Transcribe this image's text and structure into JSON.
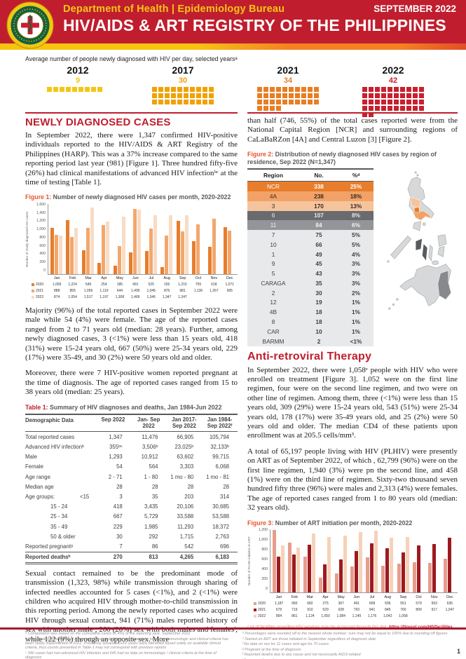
{
  "palette": {
    "red": "#C01E2E",
    "dark_red": "#A6192E",
    "fig_label_orange": "#E8542E",
    "stripe_yellow": "#F9C410",
    "stripe_orange": "#F58220"
  },
  "header": {
    "dept": "Department of Health | Epidemiology Bureau",
    "issue": "SEPTEMBER 2022",
    "title": "HIV/AIDS & ART REGISTRY OF THE PHILIPPINES"
  },
  "daily": {
    "caption": "Average number of people newly diagnosed with HIV per day, selected yearsᵃ",
    "groups": [
      {
        "year": "2012",
        "value": 9,
        "color": "#F3C613"
      },
      {
        "year": "2017",
        "value": 30,
        "color": "#F0A202"
      },
      {
        "year": "2021",
        "value": 34,
        "color": "#E87E23"
      },
      {
        "year": "2022",
        "value": 42,
        "color": "#C8202F"
      }
    ]
  },
  "newly": {
    "heading": "NEWLY DIAGNOSED CASES",
    "p1": "In September 2022, there were 1,347 confirmed HIV-positive individuals reported to the HIV/AIDS & ART Registry of the Philippines (HARP). This was a 37% increase compared to the same reporting period last year (981) [Figure 1]. Three hundred fifty-five (26%) had clinical manifestations of advanced HIV infectionᵇᶜ at the time of testing [Table 1].",
    "fig1_label": "Figure 1:",
    "fig1_caption": "Number of newly diagnosed HIV cases per month, 2020-2022",
    "p2": "Majority (96%) of the total reported cases in September 2022 were male while 54 (4%) were female. The age of the reported cases ranged from 2 to 71 years old (median: 28 years). Further, among newly diagnosed cases, 3 (<1%) were less than 15 years old, 418 (31%) were 15-24 years old, 667 (50%) were 25-34 years old, 229 (17%) were 35-49, and 30 (2%) were 50 years old and older.",
    "p3": "Moreover, there were 7 HIV-positive women reported pregnant at the time of diagnosis. The age of reported cases ranged from 15 to 38 years old (median: 25 years).",
    "table1_label": "Table 1:",
    "table1_caption": "Summary of HIV diagnoses and deaths, Jan 1984-Jun 2022",
    "table1": {
      "columns": [
        "Demographic Data",
        "Sep 2022",
        "Jan- Sep 2022",
        "Jan 2017- Sep 2022",
        "Jan 1984- Sep 2022ᶠ"
      ],
      "rows": [
        {
          "label": "Total reported cases",
          "sub": "",
          "v": [
            "1,347",
            "11,476",
            "66,905",
            "105,794"
          ]
        },
        {
          "label": "Advanced HIV infectionᵇ",
          "sub": "",
          "v": [
            "355ᵇᶜ",
            "3,506ᵇ",
            "23,025ᵇ",
            "32,133ᵇ"
          ]
        },
        {
          "label": "Male",
          "sub": "",
          "v": [
            "1,293",
            "10,912",
            "63,602",
            "99,715"
          ]
        },
        {
          "label": "Female",
          "sub": "",
          "v": [
            "54",
            "564",
            "3,303",
            "6,068"
          ]
        },
        {
          "label": "Age range",
          "sub": "",
          "v": [
            "2 - 71",
            "1 - 80",
            "1 mo - 80",
            "1 mo - 81"
          ]
        },
        {
          "label": "Median age",
          "sub": "",
          "v": [
            "28",
            "28",
            "28",
            "28"
          ]
        },
        {
          "label": "Age groups:",
          "sub": "<15",
          "v": [
            "3",
            "35",
            "203",
            "314"
          ]
        },
        {
          "label": "",
          "sub": "15 - 24",
          "v": [
            "418",
            "3,435",
            "20,106",
            "30,685"
          ]
        },
        {
          "label": "",
          "sub": "25 - 34",
          "v": [
            "667",
            "5,729",
            "33,588",
            "53,588"
          ]
        },
        {
          "label": "",
          "sub": "35 - 49",
          "v": [
            "229",
            "1,985",
            "11,293",
            "18,372"
          ]
        },
        {
          "label": "",
          "sub": "50 & older",
          "v": [
            "30",
            "292",
            "1,715",
            "2,763"
          ]
        },
        {
          "label": "Reported pregnantᵍ",
          "sub": "",
          "v": [
            "7",
            "86",
            "542",
            "696"
          ]
        },
        {
          "label": "Reported deathsʰ",
          "sub": "",
          "v": [
            "270",
            "813",
            "4,265",
            "6,183"
          ],
          "bold": true
        }
      ]
    },
    "p4": "Sexual contact remained to be the predominant mode of transmission (1,323, 98%) while transmission through sharing of infected needles accounted for 5 cases (<1%), and 2 (<1%) were children who acquired HIV through mother-to-child transmission in this reporting period. Among the newly reported cases who acquired HIV through sexual contact, 941 (71%) males reported history of sex with another male , 260 (20%) sex with both males and femalesⁱ, while 122 (9%) through an opposite sex. More"
  },
  "right": {
    "p0": "than half (746, 55%) of the total cases reported were from the National Capital Region [NCR] and surrounding regions of CaLaBaRZon [4A] and Central Luzon [3] [Figure 2].",
    "fig2_label": "Figure 2:",
    "fig2_caption": "Distribution of newly diagnosed HIV cases by region of residence, Sep 2022 (N=1,347)",
    "region_table": {
      "columns": [
        "Region",
        "No.",
        "%ᵈ"
      ],
      "rows": [
        {
          "region": "NCR",
          "no": "338",
          "pct": "25%",
          "bg": "#E87D2B",
          "fg": "#FFFFFF"
        },
        {
          "region": "4A",
          "no": "238",
          "pct": "18%",
          "bg": "#F2A266",
          "fg": "#3A2A20"
        },
        {
          "region": "3",
          "no": "170",
          "pct": "13%",
          "bg": "#F6C49C",
          "fg": "#3A2A20"
        },
        {
          "region": "6",
          "no": "107",
          "pct": "8%",
          "bg": "#6A6B6E",
          "fg": "#E8E8E8"
        },
        {
          "region": "11",
          "no": "84",
          "pct": "6%",
          "bg": "#939598",
          "fg": "#F2F2F2"
        },
        {
          "region": "7",
          "no": "75",
          "pct": "5%",
          "bg": "#E8E9EA",
          "fg": "#414042"
        },
        {
          "region": "10",
          "no": "66",
          "pct": "5%",
          "bg": "#E8E9EA",
          "fg": "#414042"
        },
        {
          "region": "1",
          "no": "49",
          "pct": "4%",
          "bg": "#E8E9EA",
          "fg": "#414042"
        },
        {
          "region": "9",
          "no": "45",
          "pct": "3%",
          "bg": "#E8E9EA",
          "fg": "#414042"
        },
        {
          "region": "5",
          "no": "43",
          "pct": "3%",
          "bg": "#E8E9EA",
          "fg": "#414042"
        },
        {
          "region": "CARAGA",
          "no": "35",
          "pct": "3%",
          "bg": "#E8E9EA",
          "fg": "#414042"
        },
        {
          "region": "2",
          "no": "30",
          "pct": "2%",
          "bg": "#E8E9EA",
          "fg": "#414042"
        },
        {
          "region": "12",
          "no": "19",
          "pct": "1%",
          "bg": "#E8E9EA",
          "fg": "#414042"
        },
        {
          "region": "4B",
          "no": "18",
          "pct": "1%",
          "bg": "#E8E9EA",
          "fg": "#414042"
        },
        {
          "region": "8",
          "no": "18",
          "pct": "1%",
          "bg": "#E8E9EA",
          "fg": "#414042"
        },
        {
          "region": "CAR",
          "no": "10",
          "pct": "1%",
          "bg": "#E8E9EA",
          "fg": "#414042"
        },
        {
          "region": "BARMM",
          "no": "2",
          "pct": "<1%",
          "bg": "#E8E9EA",
          "fg": "#414042"
        }
      ]
    }
  },
  "art": {
    "heading": "Anti-retroviral Therapy",
    "p1": "In September 2022, there were 1,058ᵉ people with HIV who were enrolled on treatment [Figure 3]. 1,052 were on the first line regimen, four were on the second line regimen, and two were on  other line of regimen. Among them, three (<1%) were less than 15 years old, 309 (29%) were 15-24 years old, 543 (51%) were 25-34 years old, 178 (17%) were 35-49 years old, and 25 (2%) were 50 years old and older. The median CD4 of these patients upon enrollment was at 205.5 cells/mm³.",
    "p2": "A total of 65,197 people living with HIV (PLHIV) were presently on  ART as of September 2022, of which , 62,799 (96%) were on the first line regimen, 1,940 (3%) were pn the second line, and 458 (1%) were on the third line of regimen. Sixty-two thousand seven hundred fifty three (96%) were males and 2,313 (4%) were females. The age of reported cases ranged from 1 to 80 years old (median: 32 years old).",
    "fig3_label": "Figure 3:",
    "fig3_caption": "Number of ART initiation per month, 2020-2022",
    "link_note": "List of facilities providing HIV services may be accessed through this link: ",
    "link_url": "https://tinyurl.com/HIVfacilities"
  },
  "chart_data": [
    {
      "type": "bar",
      "title": "Number of newly diagnosed HIV cases per month, 2020-2022",
      "ylabel": "Number of newly diagnosed HIV cases",
      "ylim": [
        0,
        1600
      ],
      "ytick": 200,
      "grid": false,
      "legend_position": "bottom-table",
      "categories": [
        "Jan",
        "Feb",
        "Mar",
        "Apr",
        "May",
        "Jun",
        "Jul",
        "Aug",
        "Sep",
        "Oct",
        "Nov",
        "Dec"
      ],
      "series": [
        {
          "name": "2020",
          "color": "#E87D2B",
          "values": [
            1059,
            1224,
            549,
            254,
            185,
            491,
            525,
            155,
            1215,
            755,
            618,
            1071
          ]
        },
        {
          "name": "2021",
          "color": "#F2A76E",
          "values": [
            888,
            855,
            1056,
            1119,
            644,
            1495,
            1045,
            876,
            981,
            1136,
            1267,
            995
          ]
        },
        {
          "name": "2022",
          "color": "#F8DCC3",
          "values": [
            874,
            1054,
            1517,
            1197,
            1308,
            1466,
            1346,
            1347,
            1347,
            null,
            null,
            null
          ]
        }
      ]
    },
    {
      "type": "bar",
      "title": "Number of ART initiation per month, 2020-2022",
      "ylabel": "Number of PLHIV initiated on ART",
      "ylim": [
        0,
        1200
      ],
      "ytick": 200,
      "grid": false,
      "legend_position": "bottom-table",
      "categories": [
        "Jan",
        "Feb",
        "Mar",
        "Apr",
        "May",
        "Jun",
        "Jul",
        "Aug",
        "Sep",
        "Oct",
        "Nov",
        "Dec"
      ],
      "series": [
        {
          "name": "2020",
          "color": "#E79C8C",
          "values": [
            1187,
            950,
            682,
            275,
            367,
            491,
            668,
            506,
            551,
            579,
            563,
            636
          ]
        },
        {
          "name": "2021",
          "color": "#9C1B20",
          "values": [
            675,
            719,
            910,
            529,
            628,
            793,
            941,
            845,
            760,
            899,
            917,
            1047
          ]
        },
        {
          "name": "2022",
          "color": "#F6D2B8",
          "values": [
            894,
            861,
            1124,
            1050,
            1084,
            1149,
            1176,
            1042,
            1058,
            null,
            null,
            null
          ]
        }
      ]
    }
  ],
  "footnotes": {
    "left": [
      "ᵃ Computation was based on the cumulative cases (X.4%) of the reporting year, September 2022",
      "ᵇ Classification of diagnosed cases with advanced clinical manifestations based on immunologic and clinical criteria has been newly implemented in 2022. Previously advanced HIV cases were identified based solely on available clinical criteria, thus counts presented in Table 1 may not correspond with previous reports",
      "ᶜ 346 cases had non-advanced HIV infection and 646 had no data on immunologic / clinical criteria at the time of diagnosis"
    ],
    "right": [
      "ᵈ Percentages were rounded off to the nearest whole number; sum may not be equal to 100% due to rounding off figures",
      "ᵉ Started on ART are those initiated in September regardless of diagnosis date",
      "ᶠ No data on sex for 11 cases and age for 70 cases",
      "ᵍ Pregnant at the time of diagnosis",
      "ʰ Reported deaths due to any cause and not necessarily AIDS-related",
      "ⁱ Among males only"
    ]
  },
  "footer": {
    "page": "1"
  }
}
